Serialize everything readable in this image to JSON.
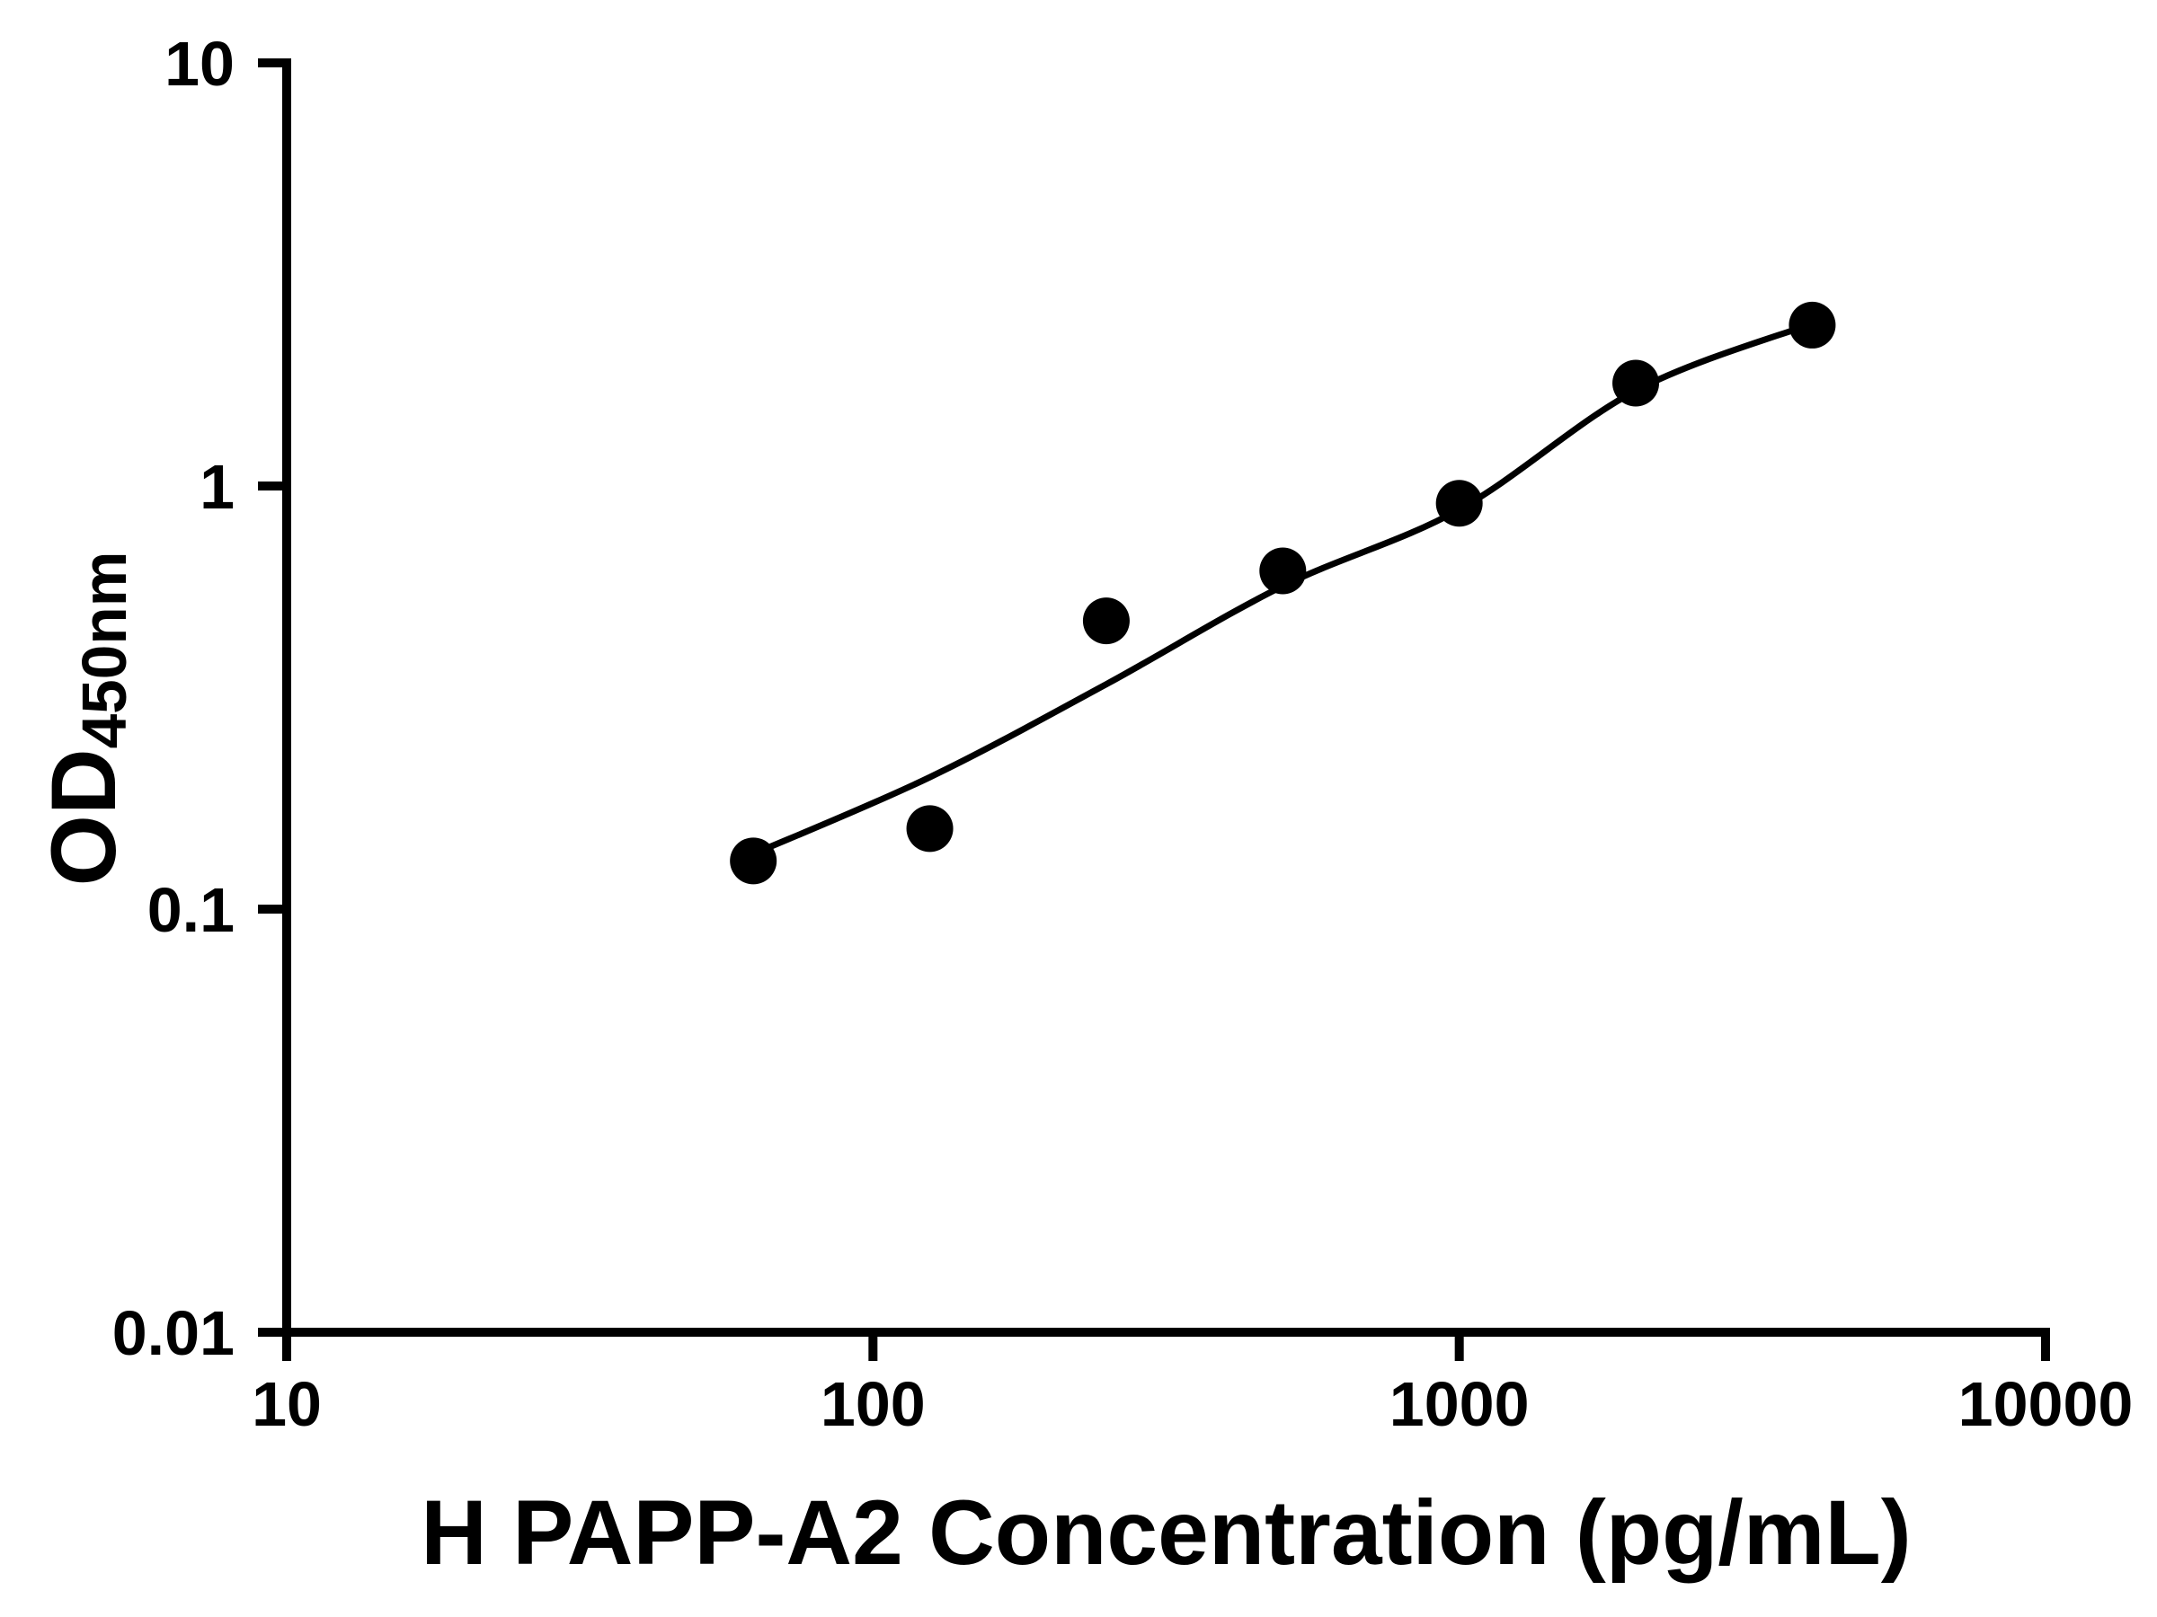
{
  "chart_data": {
    "type": "scatter",
    "title": "",
    "xlabel": "H PAPP-A2 Concentration (pg/mL)",
    "ylabel": "OD",
    "ylabel_subscript": "450nm",
    "x_scale": "log",
    "y_scale": "log",
    "xlim": [
      10,
      10000
    ],
    "ylim": [
      0.01,
      10
    ],
    "x_ticks": [
      10,
      100,
      1000,
      10000
    ],
    "x_tick_labels": [
      "10",
      "100",
      "1000",
      "10000"
    ],
    "y_ticks": [
      0.01,
      0.1,
      1,
      10
    ],
    "y_tick_labels": [
      "0.01",
      "0.1",
      "1",
      "10"
    ],
    "grid": false,
    "legend": false,
    "points": {
      "x": [
        62.5,
        125,
        250,
        500,
        1000,
        2000,
        4000
      ],
      "y": [
        0.13,
        0.155,
        0.48,
        0.63,
        0.91,
        1.75,
        2.4
      ]
    },
    "fit_curve": {
      "x": [
        62.5,
        125,
        250,
        500,
        1000,
        2000,
        4000
      ],
      "y": [
        0.135,
        0.205,
        0.34,
        0.58,
        0.88,
        1.68,
        2.42
      ]
    },
    "marker_color": "#000000",
    "line_color": "#000000",
    "axis_color": "#000000",
    "background": "#ffffff"
  }
}
